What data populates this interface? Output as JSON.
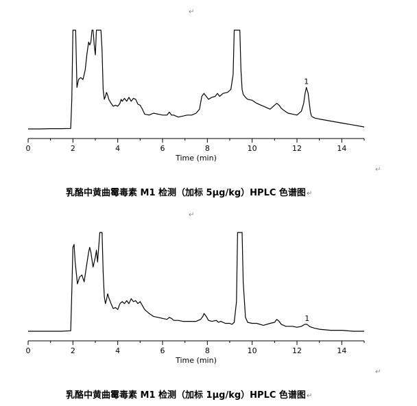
{
  "paragraph_mark": "↵",
  "chart_data": [
    {
      "type": "line",
      "title": "乳酪中黄曲霉毒素 M1 检测（加标 5μg/kg）HPLC 色谱图",
      "xlabel": "Time (min)",
      "ylabel": "",
      "xlim": [
        0,
        15
      ],
      "ylim": [
        0,
        100
      ],
      "xticks": [
        0,
        2,
        4,
        6,
        8,
        10,
        12,
        14
      ],
      "xtick_labels": [
        "0",
        "2",
        "4",
        "6",
        "8",
        "10",
        "12",
        "14"
      ],
      "grid": false,
      "legend": "none",
      "line_color": "#000000",
      "peak_annotations": [
        {
          "label": "1",
          "x": 12.42,
          "y": 42
        }
      ],
      "series": [
        {
          "x": [
            0,
            0.5,
            1.0,
            1.5,
            1.9,
            1.95,
            2.0,
            2.03,
            2.12,
            2.18,
            2.25,
            2.35,
            2.45,
            2.55,
            2.62,
            2.7,
            2.75,
            2.8,
            2.85,
            2.9,
            2.95,
            3.0,
            3.05,
            3.1,
            3.15,
            3.2,
            3.25,
            3.3,
            3.35,
            3.4,
            3.45,
            3.5,
            3.55,
            3.6,
            3.7,
            3.8,
            3.9,
            4.0,
            4.1,
            4.15,
            4.2,
            4.3,
            4.4,
            4.5,
            4.6,
            4.7,
            4.8,
            4.9,
            5.0,
            5.1,
            5.2,
            5.4,
            5.6,
            5.8,
            6.0,
            6.2,
            6.3,
            6.4,
            6.5,
            6.7,
            6.9,
            7.1,
            7.3,
            7.5,
            7.65,
            7.75,
            7.85,
            7.95,
            8.05,
            8.2,
            8.35,
            8.45,
            8.55,
            8.7,
            8.9,
            9.05,
            9.15,
            9.2,
            9.25,
            9.45,
            9.5,
            9.55,
            9.6,
            9.7,
            9.8,
            10.0,
            10.2,
            10.4,
            10.6,
            10.8,
            11.0,
            11.1,
            11.2,
            11.3,
            11.4,
            11.6,
            11.8,
            12.0,
            12.2,
            12.3,
            12.36,
            12.42,
            12.5,
            12.55,
            12.6,
            12.65,
            12.7,
            12.8,
            13.0,
            13.5,
            14.0,
            14.5,
            15.0
          ],
          "y": [
            0,
            0,
            0.3,
            0.3,
            0.5,
            30,
            100,
            100,
            100,
            42,
            50,
            52,
            50,
            60,
            75,
            88,
            85,
            88,
            100,
            100,
            85,
            75,
            100,
            100,
            100,
            100,
            100,
            80,
            40,
            30,
            33,
            37,
            34,
            30,
            26,
            23,
            24,
            23,
            26,
            30,
            28,
            31,
            28,
            32,
            28,
            31,
            30,
            25,
            24,
            20,
            15,
            14,
            16,
            15,
            14,
            14,
            17,
            14,
            14,
            12,
            13,
            14,
            14,
            16,
            20,
            33,
            36,
            33,
            30,
            32,
            33,
            36,
            33,
            36,
            37,
            40,
            55,
            100,
            100,
            100,
            60,
            40,
            35,
            32,
            30,
            29,
            26,
            24,
            22,
            20,
            24,
            26,
            24,
            21,
            19,
            16,
            15,
            14,
            18,
            26,
            36,
            42,
            36,
            26,
            17,
            13,
            12,
            11,
            10,
            8,
            6,
            4,
            2
          ]
        }
      ]
    },
    {
      "type": "line",
      "title": "乳酪中黄曲霉毒素 M1 检测（加标 1μg/kg）HPLC 色谱图",
      "xlabel": "Time (min)",
      "ylabel": "",
      "xlim": [
        0,
        15
      ],
      "ylim": [
        0,
        100
      ],
      "xticks": [
        0,
        2,
        4,
        6,
        8,
        10,
        12,
        14
      ],
      "xtick_labels": [
        "0",
        "2",
        "4",
        "6",
        "8",
        "10",
        "12",
        "14"
      ],
      "grid": false,
      "legend": "none",
      "line_color": "#000000",
      "peak_annotations": [
        {
          "label": "1",
          "x": 12.45,
          "y": 7
        }
      ],
      "series": [
        {
          "x": [
            0,
            0.5,
            1.0,
            1.5,
            1.9,
            1.95,
            2.0,
            2.05,
            2.1,
            2.2,
            2.3,
            2.4,
            2.5,
            2.6,
            2.7,
            2.75,
            2.8,
            2.9,
            3.0,
            3.05,
            3.1,
            3.2,
            3.25,
            3.3,
            3.35,
            3.4,
            3.45,
            3.5,
            3.55,
            3.6,
            3.7,
            3.8,
            3.9,
            4.0,
            4.1,
            4.2,
            4.3,
            4.4,
            4.5,
            4.6,
            4.7,
            4.8,
            4.9,
            5.0,
            5.1,
            5.2,
            5.4,
            5.6,
            5.8,
            6.0,
            6.2,
            6.3,
            6.4,
            6.5,
            6.7,
            6.9,
            7.1,
            7.3,
            7.5,
            7.7,
            7.8,
            7.85,
            7.95,
            8.05,
            8.2,
            8.4,
            8.5,
            8.6,
            8.8,
            9.0,
            9.1,
            9.2,
            9.3,
            9.35,
            9.5,
            9.55,
            9.6,
            9.7,
            9.8,
            10.0,
            10.2,
            10.5,
            10.8,
            11.0,
            11.1,
            11.2,
            11.3,
            11.5,
            11.8,
            12.0,
            12.2,
            12.35,
            12.45,
            12.55,
            12.65,
            12.8,
            13.0,
            13.5,
            14.0,
            14.5,
            15.0
          ],
          "y": [
            0,
            0,
            0,
            0,
            0.5,
            40,
            85,
            88,
            70,
            48,
            55,
            57,
            50,
            65,
            80,
            85,
            80,
            65,
            75,
            82,
            70,
            100,
            100,
            100,
            60,
            35,
            28,
            32,
            38,
            34,
            28,
            23,
            24,
            22,
            28,
            30,
            28,
            31,
            28,
            33,
            30,
            31,
            28,
            30,
            26,
            22,
            18,
            15,
            14,
            13,
            12,
            14,
            13,
            11,
            11,
            10,
            10,
            10,
            10,
            12,
            15,
            18,
            15,
            11,
            10,
            11,
            9,
            10,
            8,
            8,
            7,
            9,
            30,
            100,
            100,
            100,
            50,
            14,
            9,
            8,
            8,
            6,
            8,
            9,
            12,
            10,
            7,
            5,
            5,
            4,
            5,
            7,
            7,
            5,
            4,
            3,
            2,
            1,
            1,
            0,
            0
          ]
        }
      ]
    }
  ]
}
